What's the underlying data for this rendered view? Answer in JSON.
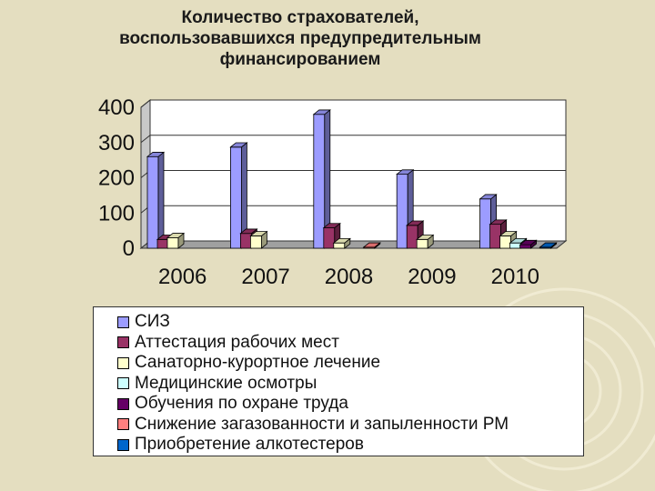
{
  "title_lines": [
    "Количество страхователей,",
    "воспользовавшихся предупредительным",
    "финансированием"
  ],
  "chart_data": {
    "type": "bar",
    "style": "3d-clustered-column",
    "title": "Количество страхователей, воспользовавшихся предупредительным финансированием",
    "categories": [
      "2006",
      "2007",
      "2008",
      "2009",
      "2010"
    ],
    "yticks": [
      "0",
      "100",
      "200",
      "300",
      "400"
    ],
    "ylim": [
      0,
      400
    ],
    "grid": true,
    "legend_position": "bottom",
    "series": [
      {
        "name": "СИЗ",
        "color": "#9c9cff",
        "values": [
          260,
          287,
          380,
          210,
          140
        ]
      },
      {
        "name": "Аттестация рабочих мест",
        "color": "#993366",
        "values": [
          25,
          42,
          58,
          65,
          68
        ]
      },
      {
        "name": "Санаторно-курортное лечение",
        "color": "#ffffcc",
        "values": [
          30,
          35,
          15,
          25,
          35
        ]
      },
      {
        "name": "Медицинские осмотры",
        "color": "#ccffff",
        "values": [
          0,
          0,
          0,
          0,
          15
        ]
      },
      {
        "name": "Обучения по охране труда",
        "color": "#660066",
        "values": [
          0,
          0,
          0,
          0,
          10
        ]
      },
      {
        "name": "Снижение загазованности и запыленности РМ",
        "color": "#ff8080",
        "values": [
          0,
          0,
          3,
          0,
          0
        ]
      },
      {
        "name": "Приобретение алкотестеров",
        "color": "#0066cc",
        "values": [
          0,
          0,
          0,
          0,
          3
        ]
      }
    ]
  }
}
